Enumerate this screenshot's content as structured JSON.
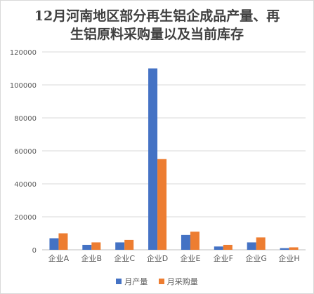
{
  "chart_data": {
    "type": "bar",
    "title": [
      "12月河南地区部分再生铝企成品产量、再",
      "生铝原料采购量以及当前库存"
    ],
    "categories": [
      "企业A",
      "企业B",
      "企业C",
      "企业D",
      "企业E",
      "企业F",
      "企业G",
      "企业H"
    ],
    "series": [
      {
        "name": "月产量",
        "color": "#4472c4",
        "values": [
          7000,
          3000,
          4500,
          110000,
          9000,
          2000,
          4500,
          1000
        ]
      },
      {
        "name": "月采购量",
        "color": "#ed7d31",
        "values": [
          10000,
          4500,
          6000,
          55000,
          11000,
          3000,
          7500,
          1500
        ]
      }
    ],
    "ylim": [
      0,
      120000
    ],
    "yticks": [
      "0",
      "20000",
      "40000",
      "60000",
      "80000",
      "100000",
      "120000"
    ],
    "grid": true,
    "legend_position": "bottom"
  }
}
